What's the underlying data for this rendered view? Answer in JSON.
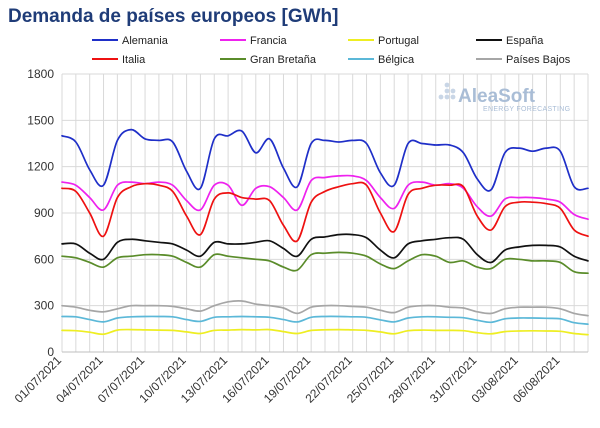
{
  "title": "Demanda de países europeos [GWh]",
  "watermark": {
    "brand": "AleaSoft",
    "tagline": "ENERGY FORECASTING"
  },
  "chart_data": {
    "type": "line",
    "title": "Demanda de países europeos [GWh]",
    "xlabel": "",
    "ylabel": "",
    "ylim": [
      0,
      1800
    ],
    "yticks": [
      0,
      300,
      600,
      900,
      1200,
      1500,
      1800
    ],
    "grid": true,
    "legend_position": "top",
    "x": [
      "01/07/2021",
      "02/07/2021",
      "03/07/2021",
      "04/07/2021",
      "05/07/2021",
      "06/07/2021",
      "07/07/2021",
      "08/07/2021",
      "09/07/2021",
      "10/07/2021",
      "11/07/2021",
      "12/07/2021",
      "13/07/2021",
      "14/07/2021",
      "15/07/2021",
      "16/07/2021",
      "17/07/2021",
      "18/07/2021",
      "19/07/2021",
      "20/07/2021",
      "21/07/2021",
      "22/07/2021",
      "23/07/2021",
      "24/07/2021",
      "25/07/2021",
      "26/07/2021",
      "27/07/2021",
      "28/07/2021",
      "29/07/2021",
      "30/07/2021",
      "31/07/2021",
      "01/08/2021",
      "02/08/2021",
      "03/08/2021",
      "04/08/2021",
      "05/08/2021",
      "06/08/2021",
      "07/08/2021",
      "08/08/2021"
    ],
    "xtick_labels": [
      "01/07/2021",
      "04/07/2021",
      "07/07/2021",
      "10/07/2021",
      "13/07/2021",
      "16/07/2021",
      "19/07/2021",
      "22/07/2021",
      "25/07/2021",
      "28/07/2021",
      "31/07/2021",
      "03/08/2021",
      "06/08/2021"
    ],
    "series": [
      {
        "name": "Alemania",
        "color": "#1f2fc8",
        "values": [
          1400,
          1360,
          1180,
          1080,
          1370,
          1440,
          1380,
          1370,
          1360,
          1170,
          1060,
          1380,
          1400,
          1430,
          1290,
          1380,
          1190,
          1070,
          1350,
          1370,
          1360,
          1370,
          1350,
          1160,
          1080,
          1350,
          1350,
          1340,
          1340,
          1290,
          1120,
          1050,
          1290,
          1320,
          1300,
          1320,
          1300,
          1070,
          1060
        ]
      },
      {
        "name": "Francia",
        "color": "#ee22ee",
        "values": [
          1100,
          1080,
          1000,
          920,
          1080,
          1100,
          1090,
          1100,
          1080,
          980,
          920,
          1080,
          1080,
          950,
          1060,
          1070,
          1000,
          920,
          1110,
          1130,
          1140,
          1140,
          1110,
          1000,
          930,
          1080,
          1100,
          1080,
          1090,
          1060,
          940,
          880,
          990,
          1000,
          1000,
          990,
          970,
          890,
          860
        ]
      },
      {
        "name": "Portugal",
        "color": "#eeee22",
        "values": [
          140,
          138,
          128,
          115,
          142,
          145,
          143,
          142,
          140,
          130,
          120,
          140,
          142,
          145,
          143,
          145,
          132,
          120,
          140,
          144,
          145,
          143,
          140,
          130,
          118,
          138,
          142,
          140,
          140,
          138,
          125,
          118,
          132,
          136,
          137,
          136,
          134,
          120,
          112
        ]
      },
      {
        "name": "España",
        "color": "#111111",
        "values": [
          700,
          700,
          640,
          600,
          710,
          730,
          720,
          710,
          700,
          660,
          620,
          710,
          700,
          700,
          710,
          720,
          670,
          620,
          730,
          745,
          760,
          760,
          740,
          660,
          610,
          700,
          720,
          730,
          740,
          730,
          630,
          580,
          660,
          680,
          690,
          690,
          680,
          620,
          590
        ]
      },
      {
        "name": "Italia",
        "color": "#ee1111",
        "values": [
          1060,
          1040,
          900,
          750,
          1000,
          1070,
          1090,
          1080,
          1040,
          880,
          760,
          990,
          1030,
          1000,
          990,
          980,
          820,
          720,
          970,
          1040,
          1070,
          1090,
          1080,
          900,
          780,
          1020,
          1060,
          1080,
          1080,
          1070,
          880,
          790,
          940,
          970,
          970,
          960,
          930,
          790,
          750
        ]
      },
      {
        "name": "Gran Bretaña",
        "color": "#5a8c2a",
        "values": [
          620,
          610,
          580,
          550,
          610,
          620,
          630,
          630,
          620,
          580,
          550,
          630,
          620,
          610,
          600,
          590,
          550,
          530,
          630,
          640,
          645,
          640,
          620,
          570,
          540,
          590,
          630,
          620,
          580,
          590,
          550,
          540,
          600,
          600,
          590,
          590,
          580,
          520,
          510
        ]
      },
      {
        "name": "Bélgica",
        "color": "#5bb8d8",
        "values": [
          230,
          228,
          210,
          195,
          220,
          228,
          230,
          230,
          228,
          210,
          198,
          225,
          228,
          230,
          228,
          225,
          210,
          195,
          225,
          230,
          230,
          228,
          225,
          208,
          195,
          220,
          228,
          228,
          225,
          222,
          205,
          192,
          215,
          220,
          220,
          218,
          215,
          190,
          180
        ]
      },
      {
        "name": "Países Bajos",
        "color": "#a6a6a6",
        "values": [
          300,
          290,
          270,
          260,
          280,
          300,
          300,
          300,
          295,
          280,
          265,
          300,
          325,
          330,
          310,
          300,
          285,
          250,
          290,
          300,
          300,
          295,
          290,
          270,
          255,
          290,
          300,
          300,
          290,
          285,
          260,
          250,
          280,
          290,
          290,
          290,
          280,
          250,
          235
        ]
      }
    ]
  }
}
